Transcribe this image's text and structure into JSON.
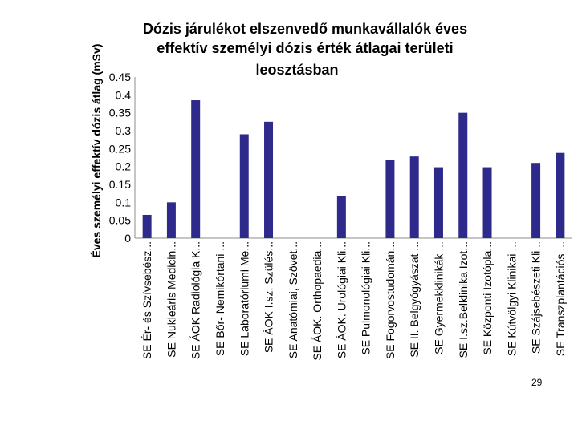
{
  "page": {
    "number": "29"
  },
  "chart_data": {
    "type": "bar",
    "title_lines": [
      "Dózis járulékot elszenvedő munkavállalók éves",
      "effektív személyi dózis érték átlagai területi",
      "leosztásban"
    ],
    "ylabel": "Éves személyi effektív dózis átlag (mSv)",
    "xlabel": "",
    "ylim": [
      0,
      0.45
    ],
    "yticks": [
      "0",
      "0.05",
      "0.1",
      "0.15",
      "0.2",
      "0.25",
      "0.3",
      "0.35",
      "0.4",
      "0.45"
    ],
    "bar_color": "#2e2a8c",
    "grid": false,
    "legend": "none",
    "categories": [
      "SE Ér- és Szívsebész...",
      "SE Nukleáris Medicin...",
      "SE ÁOK Radiológia K...",
      "SE Bőr- Nemikórtani ...",
      "SE Laboratóriumi Me...",
      "SE ÁOK I.sz. Szülés...",
      "SE Anatómiai, Szövet...",
      "SE ÁOK. Orthopaedia...",
      "SE ÁOK. Urológiai Kli...",
      "SE Pulmonológiai Kli...",
      "SE Fogorvostudomán...",
      "SE II. Belgyógyászat ...",
      "SE Gyermekklinikák ...",
      "SE I.sz.Belklinika Izot...",
      "SE Központi Izotópla...",
      "SE Kútvölgyi Klinikai ...",
      "SE Szájsebészeti Kli...",
      "SE Transzplantációs ..."
    ],
    "values": [
      0.065,
      0.1,
      0.385,
      0,
      0.29,
      0.325,
      0,
      0,
      0.118,
      0,
      0.218,
      0.228,
      0.198,
      0.35,
      0.198,
      0,
      0.21,
      0.238
    ]
  }
}
